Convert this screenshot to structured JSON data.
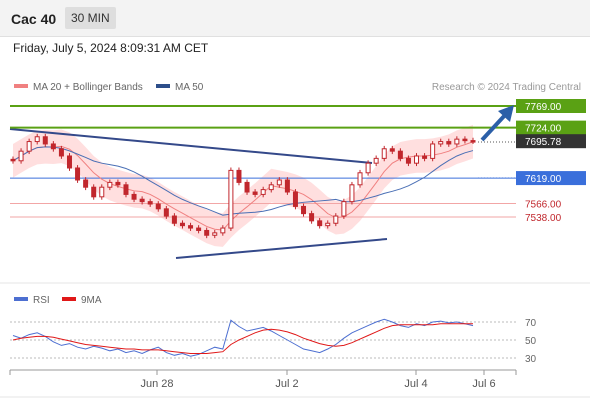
{
  "header": {
    "instrument": "Cac 40",
    "timeframe": "30 MIN"
  },
  "timestamp": "Friday, July 5, 2024 8:09:31 AM CET",
  "legend": {
    "ma20_label": "MA 20 + Bollinger Bands",
    "ma50_label": "MA 50",
    "credit": "Research © 2024 Trading Central"
  },
  "rsi_legend": {
    "rsi_label": "RSI",
    "ma_label": "9MA"
  },
  "colors": {
    "green": "#5aa114",
    "blue": "#3a6fdb",
    "candle": "#c1272d",
    "bollinger": "#ffd7d7",
    "ma20": "#f08080",
    "ma50": "#4a6fb5",
    "trend": "#3b4e8c",
    "rsi": "#4d6fd1",
    "rsi_ma": "#e01818"
  },
  "chart_data": {
    "type": "candlestick",
    "x_ticks": [
      "Jun 28",
      "Jul 2",
      "Jul 4",
      "Jul 6"
    ],
    "y_range": [
      7480,
      7790
    ],
    "levels": [
      {
        "value": 7769.0,
        "label": "7769.00",
        "kind": "resistance"
      },
      {
        "value": 7724.0,
        "label": "7724.00",
        "kind": "resistance"
      },
      {
        "value": 7695.78,
        "label": "7695.78",
        "kind": "last"
      },
      {
        "value": 7619.0,
        "label": "7619.00",
        "kind": "pivot"
      },
      {
        "value": 7566.0,
        "label": "7566.00",
        "kind": "support"
      },
      {
        "value": 7538.0,
        "label": "7538.00",
        "kind": "support"
      }
    ],
    "close_series": [
      7655,
      7675,
      7695,
      7705,
      7690,
      7680,
      7665,
      7640,
      7615,
      7600,
      7580,
      7600,
      7610,
      7605,
      7585,
      7575,
      7570,
      7565,
      7555,
      7540,
      7525,
      7520,
      7515,
      7510,
      7500,
      7505,
      7515,
      7635,
      7610,
      7590,
      7585,
      7595,
      7605,
      7615,
      7590,
      7560,
      7545,
      7530,
      7520,
      7525,
      7540,
      7570,
      7605,
      7630,
      7650,
      7660,
      7680,
      7675,
      7660,
      7650,
      7665,
      7660,
      7690,
      7695,
      7690,
      7700,
      7697,
      7696
    ],
    "rsi": {
      "y_ticks": [
        70,
        50,
        30
      ],
      "rsi_values": [
        55,
        52,
        56,
        58,
        54,
        48,
        44,
        46,
        42,
        40,
        43,
        41,
        38,
        40,
        36,
        38,
        35,
        39,
        42,
        36,
        33,
        35,
        32,
        34,
        38,
        42,
        40,
        72,
        65,
        60,
        62,
        64,
        60,
        55,
        50,
        45,
        40,
        38,
        36,
        40,
        45,
        52,
        58,
        62,
        66,
        70,
        73,
        70,
        66,
        64,
        68,
        66,
        70,
        71,
        69,
        70,
        68,
        66
      ],
      "ma_values": [
        50,
        52,
        53,
        54,
        54,
        53,
        51,
        49,
        47,
        45,
        44,
        43,
        42,
        41,
        40,
        40,
        39,
        39,
        39,
        38,
        37,
        36,
        35,
        35,
        35,
        36,
        37,
        45,
        50,
        54,
        58,
        61,
        62,
        61,
        59,
        56,
        52,
        49,
        46,
        44,
        43,
        44,
        47,
        51,
        55,
        59,
        63,
        66,
        67,
        67,
        67,
        67,
        67,
        68,
        68,
        68,
        68,
        68
      ]
    }
  }
}
